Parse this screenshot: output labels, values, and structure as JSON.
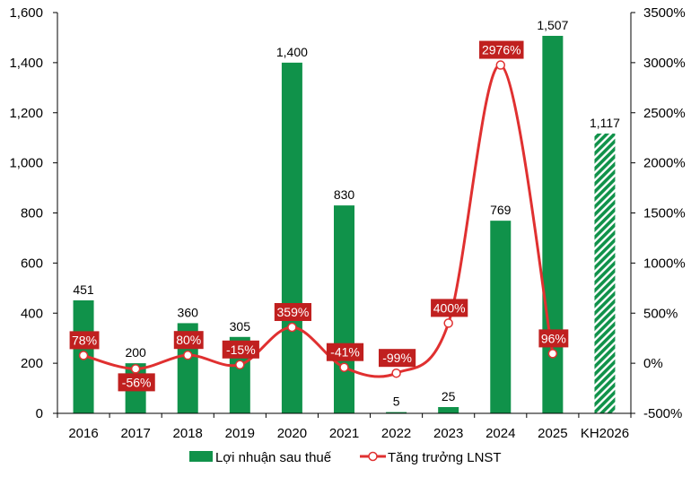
{
  "chart_data": {
    "type": "bar+line",
    "categories": [
      "2016",
      "2017",
      "2018",
      "2019",
      "2020",
      "2021",
      "2022",
      "2023",
      "2024",
      "2025",
      "KH2026"
    ],
    "series": [
      {
        "name": "Lợi nhuận sau thuế",
        "type": "bar",
        "axis": "left",
        "color": "#10924a",
        "values": [
          451,
          200,
          360,
          305,
          1400,
          830,
          5,
          25,
          769,
          1507,
          1117
        ],
        "labels": [
          "451",
          "200",
          "360",
          "305",
          "1,400",
          "830",
          "5",
          "25",
          "769",
          "1,507",
          "1,117"
        ],
        "hatched": [
          false,
          false,
          false,
          false,
          false,
          false,
          false,
          false,
          false,
          false,
          true
        ]
      },
      {
        "name": "Tăng trưởng LNST",
        "type": "line",
        "axis": "right",
        "color": "#e03030",
        "values": [
          78,
          -56,
          80,
          -15,
          359,
          -41,
          -99,
          400,
          2976,
          96,
          null
        ],
        "labels": [
          "78%",
          "-56%",
          "80%",
          "-15%",
          "359%",
          "-41%",
          "-99%",
          "400%",
          "2976%",
          "96%",
          null
        ],
        "label_color": "#c0201f"
      }
    ],
    "left_axis": {
      "ylim": [
        0,
        1600
      ],
      "ticks": [
        "0",
        "200",
        "400",
        "600",
        "800",
        "1,000",
        "1,200",
        "1,400",
        "1,600"
      ],
      "tick_values": [
        0,
        200,
        400,
        600,
        800,
        1000,
        1200,
        1400,
        1600
      ]
    },
    "right_axis": {
      "ylim": [
        -500,
        3500
      ],
      "ticks": [
        "-500%",
        "0%",
        "500%",
        "1000%",
        "1500%",
        "2000%",
        "2500%",
        "3000%",
        "3500%"
      ],
      "tick_values": [
        -500,
        0,
        500,
        1000,
        1500,
        2000,
        2500,
        3000,
        3500
      ]
    },
    "legend": {
      "placement": "bottom",
      "items": [
        "Lợi nhuận sau thuế",
        "Tăng trưởng LNST"
      ]
    },
    "grid": false
  }
}
